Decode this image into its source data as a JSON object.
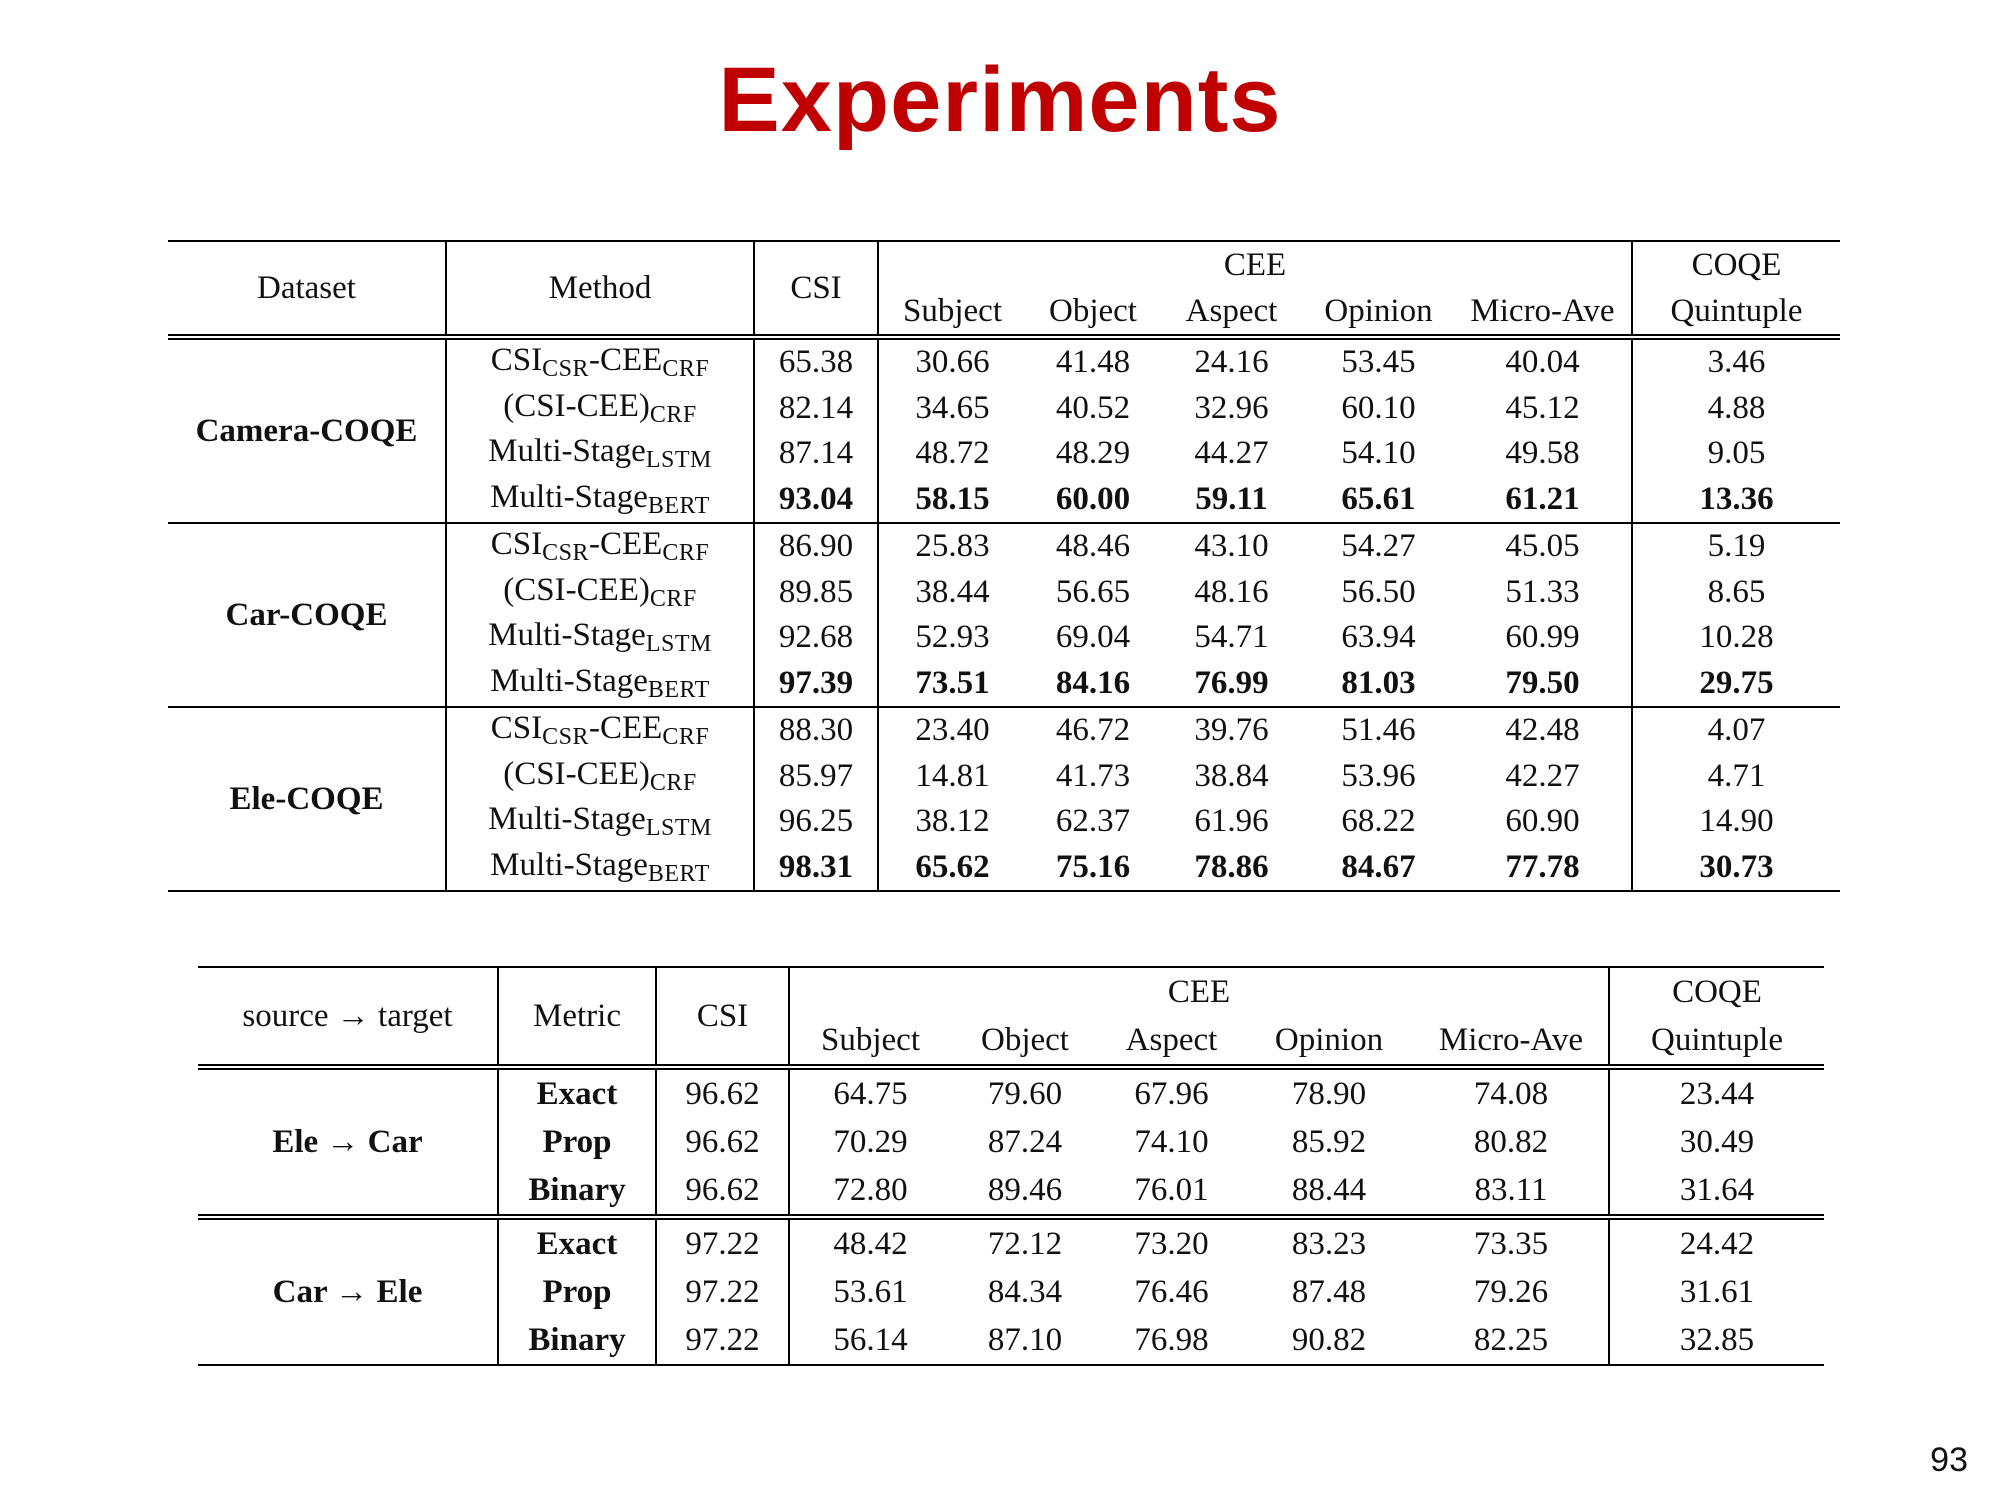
{
  "title": "Experiments",
  "page_number": "93",
  "table1": {
    "headers": {
      "dataset": "Dataset",
      "method": "Method",
      "csi": "CSI",
      "cee": "CEE",
      "coqe": "COQE",
      "cee_cols": [
        "Subject",
        "Object",
        "Aspect",
        "Opinion",
        "Micro-Ave"
      ],
      "coqe_col": "Quintuple"
    },
    "groups": [
      {
        "dataset": "Camera-COQE",
        "rows": [
          {
            "method": "CSI",
            "method_sub": "CSR",
            "method_mid": "-CEE",
            "method_sub2": "CRF",
            "values": [
              "65.38",
              "30.66",
              "41.48",
              "24.16",
              "53.45",
              "40.04",
              "3.46"
            ]
          },
          {
            "method": "(CSI-CEE)",
            "method_sub": "CRF",
            "method_mid": "",
            "method_sub2": "",
            "values": [
              "82.14",
              "34.65",
              "40.52",
              "32.96",
              "60.10",
              "45.12",
              "4.88"
            ]
          },
          {
            "method": "Multi-Stage",
            "method_sub": "LSTM",
            "method_mid": "",
            "method_sub2": "",
            "values": [
              "87.14",
              "48.72",
              "48.29",
              "44.27",
              "54.10",
              "49.58",
              "9.05"
            ]
          },
          {
            "method": "Multi-Stage",
            "method_sub": "BERT",
            "method_mid": "",
            "method_sub2": "",
            "values": [
              "93.04",
              "58.15",
              "60.00",
              "59.11",
              "65.61",
              "61.21",
              "13.36"
            ]
          }
        ]
      },
      {
        "dataset": "Car-COQE",
        "rows": [
          {
            "method": "CSI",
            "method_sub": "CSR",
            "method_mid": "-CEE",
            "method_sub2": "CRF",
            "values": [
              "86.90",
              "25.83",
              "48.46",
              "43.10",
              "54.27",
              "45.05",
              "5.19"
            ]
          },
          {
            "method": "(CSI-CEE)",
            "method_sub": "CRF",
            "method_mid": "",
            "method_sub2": "",
            "values": [
              "89.85",
              "38.44",
              "56.65",
              "48.16",
              "56.50",
              "51.33",
              "8.65"
            ]
          },
          {
            "method": "Multi-Stage",
            "method_sub": "LSTM",
            "method_mid": "",
            "method_sub2": "",
            "values": [
              "92.68",
              "52.93",
              "69.04",
              "54.71",
              "63.94",
              "60.99",
              "10.28"
            ]
          },
          {
            "method": "Multi-Stage",
            "method_sub": "BERT",
            "method_mid": "",
            "method_sub2": "",
            "values": [
              "97.39",
              "73.51",
              "84.16",
              "76.99",
              "81.03",
              "79.50",
              "29.75"
            ]
          }
        ]
      },
      {
        "dataset": "Ele-COQE",
        "rows": [
          {
            "method": "CSI",
            "method_sub": "CSR",
            "method_mid": "-CEE",
            "method_sub2": "CRF",
            "values": [
              "88.30",
              "23.40",
              "46.72",
              "39.76",
              "51.46",
              "42.48",
              "4.07"
            ]
          },
          {
            "method": "(CSI-CEE)",
            "method_sub": "CRF",
            "method_mid": "",
            "method_sub2": "",
            "values": [
              "85.97",
              "14.81",
              "41.73",
              "38.84",
              "53.96",
              "42.27",
              "4.71"
            ]
          },
          {
            "method": "Multi-Stage",
            "method_sub": "LSTM",
            "method_mid": "",
            "method_sub2": "",
            "values": [
              "96.25",
              "38.12",
              "62.37",
              "61.96",
              "68.22",
              "60.90",
              "14.90"
            ]
          },
          {
            "method": "Multi-Stage",
            "method_sub": "BERT",
            "method_mid": "",
            "method_sub2": "",
            "values": [
              "98.31",
              "65.62",
              "75.16",
              "78.86",
              "84.67",
              "77.78",
              "30.73"
            ]
          }
        ]
      }
    ]
  },
  "table2": {
    "headers": {
      "source_target": "source → target",
      "metric": "Metric",
      "csi": "CSI",
      "cee": "CEE",
      "coqe": "COQE",
      "cee_cols": [
        "Subject",
        "Object",
        "Aspect",
        "Opinion",
        "Micro-Ave"
      ],
      "coqe_col": "Quintuple"
    },
    "groups": [
      {
        "transfer": "Ele → Car",
        "rows": [
          {
            "metric": "Exact",
            "values": [
              "96.62",
              "64.75",
              "79.60",
              "67.96",
              "78.90",
              "74.08",
              "23.44"
            ]
          },
          {
            "metric": "Prop",
            "values": [
              "96.62",
              "70.29",
              "87.24",
              "74.10",
              "85.92",
              "80.82",
              "30.49"
            ]
          },
          {
            "metric": "Binary",
            "values": [
              "96.62",
              "72.80",
              "89.46",
              "76.01",
              "88.44",
              "83.11",
              "31.64"
            ]
          }
        ]
      },
      {
        "transfer": "Car → Ele",
        "rows": [
          {
            "metric": "Exact",
            "values": [
              "97.22",
              "48.42",
              "72.12",
              "73.20",
              "83.23",
              "73.35",
              "24.42"
            ]
          },
          {
            "metric": "Prop",
            "values": [
              "97.22",
              "53.61",
              "84.34",
              "76.46",
              "87.48",
              "79.26",
              "31.61"
            ]
          },
          {
            "metric": "Binary",
            "values": [
              "97.22",
              "56.14",
              "87.10",
              "76.98",
              "90.82",
              "82.25",
              "32.85"
            ]
          }
        ]
      }
    ]
  }
}
